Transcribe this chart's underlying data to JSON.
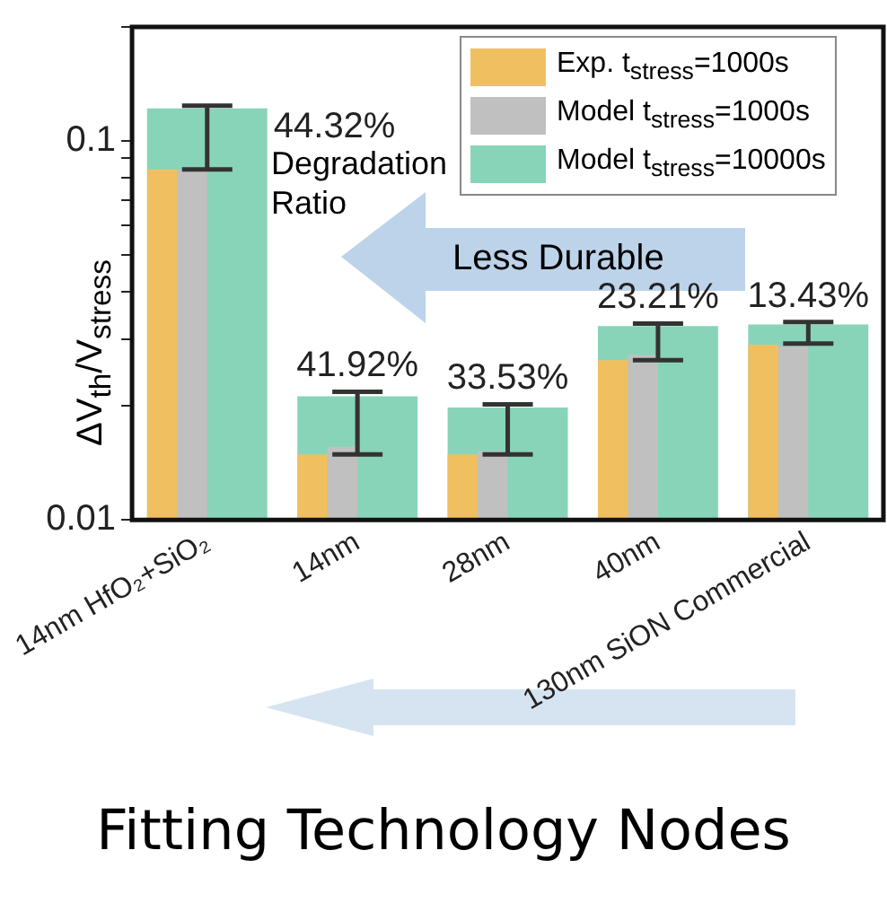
{
  "chart_data": {
    "type": "bar",
    "title": "Fitting Technology Nodes",
    "ylabel": "ΔV$_{th}$/V$_{stress}$",
    "categories": [
      "14nm HfO₂+SiO₂",
      "14nm",
      "28nm",
      "40nm",
      "130nm SiON Commercial"
    ],
    "series": [
      {
        "name": "Exp. t$_{stress}$=1000s",
        "color": "#f0c060",
        "values": [
          0.0841,
          0.0149,
          0.0149,
          0.0264,
          0.029
        ]
      },
      {
        "name": "Model t$_{stress}$=1000s",
        "color": "#c0c0c0",
        "values": [
          0.0841,
          0.0156,
          0.0152,
          0.0273,
          0.0287
        ]
      },
      {
        "name": "Model t$_{stress}$=10000s",
        "color": "#88d4b8",
        "values": [
          0.122,
          0.0212,
          0.0198,
          0.0325,
          0.0328
        ],
        "errors": [
          [
            0.0841,
            0.124
          ],
          [
            0.0149,
            0.0218
          ],
          [
            0.0149,
            0.0202
          ],
          [
            0.0264,
            0.033
          ],
          [
            0.0292,
            0.0333
          ]
        ]
      }
    ],
    "log": "y",
    "ylim": [
      0.01,
      0.2
    ],
    "yticks": [
      0.01,
      {
        "value": 0.02,
        "label": null
      },
      {
        "value": 0.03,
        "label": null
      },
      {
        "value": 0.04,
        "label": null
      },
      {
        "value": 0.05,
        "label": null
      },
      {
        "value": 0.06,
        "label": null
      },
      {
        "value": 0.07,
        "label": null
      },
      {
        "value": 0.08,
        "label": null
      },
      {
        "value": 0.09,
        "label": null
      },
      0.1,
      {
        "value": 0.2,
        "label": null
      }
    ],
    "grid": false,
    "legend": "top right",
    "annotations": [
      {
        "text": "44.32%",
        "x": "14nm HfO₂+SiO₂",
        "y": 0.124
      },
      "Degradation Ratio",
      {
        "text": "41.92%",
        "x": "14nm",
        "y": 0.0218
      },
      {
        "text": "33.53%",
        "x": "28nm",
        "y": 0.0202
      },
      {
        "text": "23.21%",
        "x": "40nm",
        "y": 0.033
      },
      {
        "text": "13.43%",
        "x": "130nm SiON Commercial",
        "y": 0.0333
      },
      "Less Durable"
    ]
  }
}
